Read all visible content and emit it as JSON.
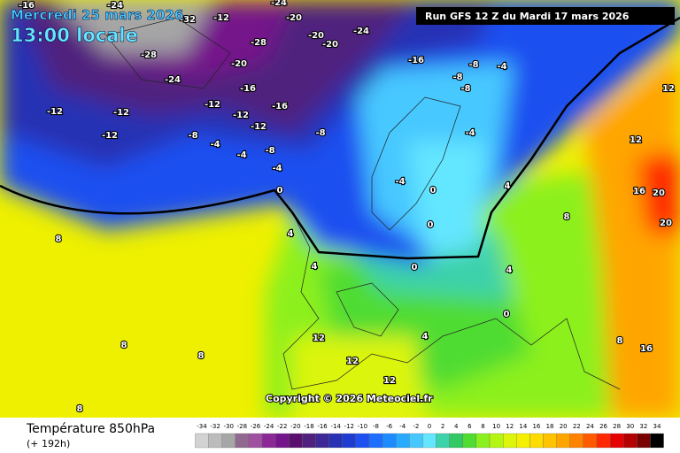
{
  "header": {
    "date": "Mercredi 25 mars 2026",
    "time": "13:00 locale",
    "run": "Run GFS 12 Z du Mardi 17 mars 2026"
  },
  "copyright": "Copyright © 2026 Meteociel.fr",
  "footer": {
    "title": "Température 850hPa",
    "lead": "(+ 192h)"
  },
  "contour_labels": [
    -16,
    -24,
    -32,
    -12,
    -20,
    -24,
    -20,
    -20,
    -24,
    -28,
    -28,
    -20,
    -16,
    -24,
    -12,
    -12,
    -16,
    -12,
    -8,
    -4,
    -4,
    -8,
    -4,
    0,
    -12,
    -12,
    -12,
    -16,
    -8,
    -4,
    -8,
    -8,
    -8,
    -4,
    -4,
    0,
    0,
    4,
    4,
    4,
    8,
    8,
    8,
    8,
    12,
    12,
    12,
    12,
    12,
    16,
    16,
    20,
    20,
    8,
    8,
    4,
    4,
    0,
    0
  ],
  "colorbar": {
    "ticks": [
      -34,
      -32,
      -30,
      -28,
      -26,
      -24,
      -22,
      -20,
      -18,
      -16,
      -14,
      -12,
      -10,
      -8,
      -6,
      -4,
      -2,
      0,
      2,
      4,
      6,
      8,
      10,
      12,
      14,
      16,
      18,
      20,
      22,
      24,
      26,
      28,
      30,
      32,
      34
    ],
    "colors": [
      "#d2d2d2",
      "#bcbcbc",
      "#a6a6a6",
      "#906890",
      "#a050a0",
      "#8c2896",
      "#74168a",
      "#5a0f6e",
      "#50207e",
      "#3c2896",
      "#2830b4",
      "#1e3cd2",
      "#1e50f0",
      "#1e6eff",
      "#1e8cff",
      "#28aaff",
      "#46c8ff",
      "#64e6ff",
      "#3cd2aa",
      "#32c864",
      "#50dc32",
      "#8cf01e",
      "#b4f514",
      "#dcf50a",
      "#f5f000",
      "#ffdc00",
      "#ffc300",
      "#ffa500",
      "#ff8200",
      "#ff5a00",
      "#ff2800",
      "#e60000",
      "#b40000",
      "#780000",
      "#000000"
    ]
  }
}
